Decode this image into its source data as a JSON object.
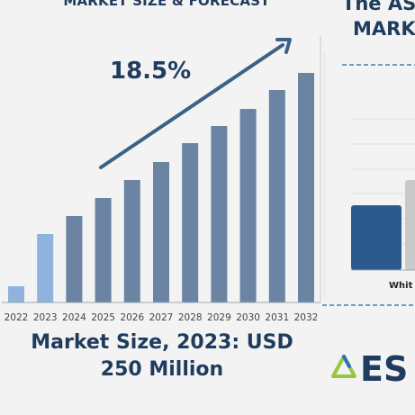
{
  "header": {
    "title": "MARKET SIZE & FORECAST",
    "right_title_line1": "The AS",
    "right_title_line2": "MARKE"
  },
  "cagr_label": "18.5%",
  "subtitle": {
    "line1": "Market Size, 2023: USD",
    "line2": "250 Million"
  },
  "right_panel": {
    "bar_label": "Whit",
    "logo_text": "ES",
    "colors": {
      "dark_bar": "#2c5a8c",
      "grey_bar": "#c9c9c9",
      "dash": "#4a7aa8"
    }
  },
  "colors": {
    "bar": "#6b84a3",
    "bar_highlight": "#8fb3dd",
    "arrow": "#3a6186",
    "title": "#1f3b5e"
  },
  "chart_data": {
    "type": "bar",
    "categories": [
      "2022",
      "2023",
      "2024",
      "2025",
      "2026",
      "2027",
      "2028",
      "2029",
      "2030",
      "2031",
      "2032"
    ],
    "values": [
      18,
      76,
      96,
      116,
      136,
      156,
      177,
      196,
      215,
      236,
      255
    ],
    "highlight_categories": [
      "2022",
      "2023"
    ],
    "annotation": "18.5%",
    "ylim": [
      0,
      260
    ],
    "grid": false
  }
}
